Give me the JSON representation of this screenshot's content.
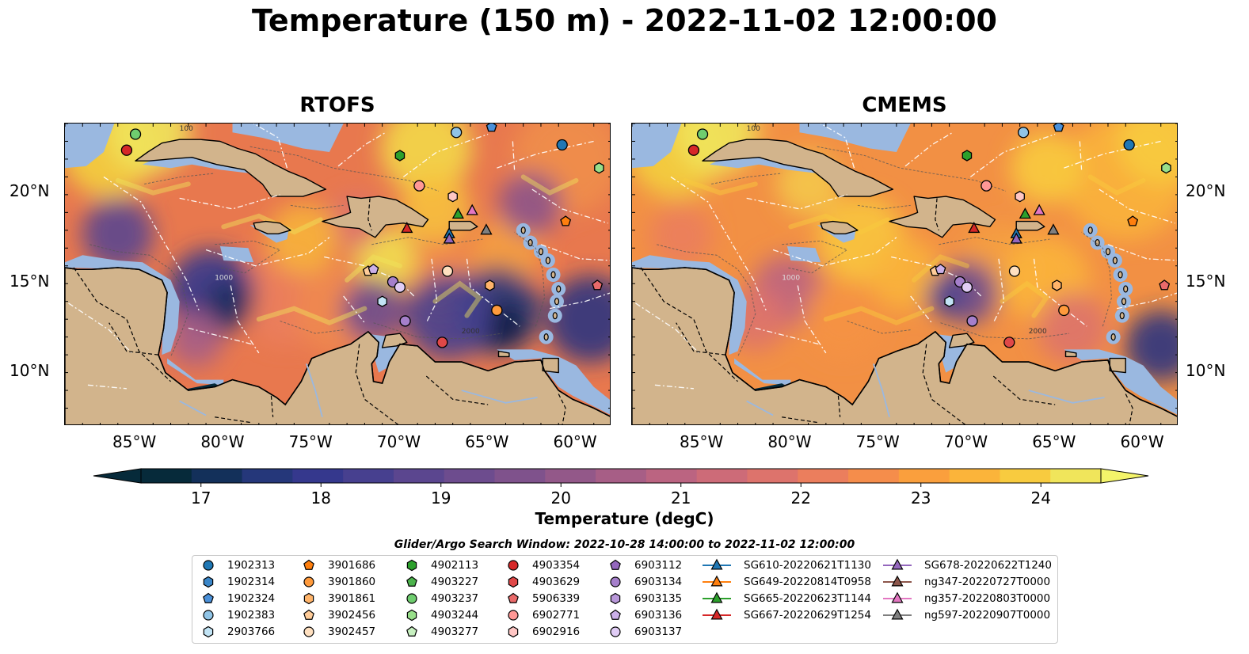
{
  "title": "Temperature (150 m) - 2022-11-02 12:00:00",
  "panels": [
    {
      "title": "RTOFS"
    },
    {
      "title": "CMEMS"
    }
  ],
  "map": {
    "lon_range": [
      -89,
      -58
    ],
    "lat_range": [
      7,
      24
    ],
    "lat_ticks": [
      "20°N",
      "15°N",
      "10°N"
    ],
    "lon_ticks": [
      "85°W",
      "80°W",
      "75°W",
      "70°W",
      "65°W",
      "60°W"
    ],
    "land_color": "#d2b48c",
    "shelf_color": "#9ab8e0",
    "contour_labels": [
      "1000",
      "2000",
      "100"
    ]
  },
  "colorbar": {
    "label": "Temperature (degC)",
    "ticks": [
      "17",
      "18",
      "19",
      "20",
      "21",
      "22",
      "23",
      "24"
    ],
    "range": [
      16.5,
      24.5
    ],
    "colors": [
      "#062a3a",
      "#13305a",
      "#25377a",
      "#35388d",
      "#47408f",
      "#5b468f",
      "#6d4c8e",
      "#7f528c",
      "#935889",
      "#a75e86",
      "#bb6481",
      "#cd6b78",
      "#dd736c",
      "#eb7e5d",
      "#f58d4b",
      "#fa9f3d",
      "#fbb43a",
      "#f8cb3f",
      "#f0e55b"
    ],
    "extend_low": "#062a3a",
    "extend_high": "#f4f46a"
  },
  "search_window": "Glider/Argo Search Window: 2022-10-28 14:00:00 to 2022-11-02 12:00:00",
  "legend": {
    "columns": [
      [
        {
          "label": "1902313",
          "marker": "circle",
          "color": "#1f77b4"
        },
        {
          "label": "1902314",
          "marker": "hexagon",
          "color": "#3a86c8"
        },
        {
          "label": "1902324",
          "marker": "pentagon",
          "color": "#4a90d9"
        },
        {
          "label": "1902383",
          "marker": "circle",
          "color": "#90c4e6"
        },
        {
          "label": "2903766",
          "marker": "hexagon",
          "color": "#c2e4f5"
        }
      ],
      [
        {
          "label": "3901686",
          "marker": "pentagon",
          "color": "#ff7f0e"
        },
        {
          "label": "3901860",
          "marker": "circle",
          "color": "#ff9a3c"
        },
        {
          "label": "3901861",
          "marker": "hexagon",
          "color": "#ffb46a"
        },
        {
          "label": "3902456",
          "marker": "pentagon",
          "color": "#ffcc99"
        },
        {
          "label": "3902457",
          "marker": "circle",
          "color": "#ffe0c0"
        }
      ],
      [
        {
          "label": "4902113",
          "marker": "hexagon",
          "color": "#2ca02c"
        },
        {
          "label": "4903227",
          "marker": "pentagon",
          "color": "#4cb34c"
        },
        {
          "label": "4903237",
          "marker": "circle",
          "color": "#6fcd6f"
        },
        {
          "label": "4903244",
          "marker": "hexagon",
          "color": "#98df8a"
        },
        {
          "label": "4903277",
          "marker": "pentagon",
          "color": "#c7f0c0"
        }
      ],
      [
        {
          "label": "4903354",
          "marker": "circle",
          "color": "#d62728"
        },
        {
          "label": "4903629",
          "marker": "hexagon",
          "color": "#e04848"
        },
        {
          "label": "5906339",
          "marker": "pentagon",
          "color": "#ea6a6a"
        },
        {
          "label": "6902771",
          "marker": "circle",
          "color": "#ff9896"
        },
        {
          "label": "6902916",
          "marker": "hexagon",
          "color": "#ffc6c4"
        }
      ],
      [
        {
          "label": "6903112",
          "marker": "pentagon",
          "color": "#9467bd"
        },
        {
          "label": "6903134",
          "marker": "circle",
          "color": "#a57fcb"
        },
        {
          "label": "6903135",
          "marker": "hexagon",
          "color": "#b897d9"
        },
        {
          "label": "6903136",
          "marker": "pentagon",
          "color": "#cbb0e8"
        },
        {
          "label": "6903137",
          "marker": "circle",
          "color": "#e0ccf5"
        }
      ],
      [
        {
          "label": "SG610-20220621T1130",
          "marker": "triangle-line",
          "color": "#1f77b4"
        },
        {
          "label": "SG649-20220814T0958",
          "marker": "triangle-line",
          "color": "#ff7f0e"
        },
        {
          "label": "SG665-20220623T1144",
          "marker": "triangle-line",
          "color": "#2ca02c"
        },
        {
          "label": "SG667-20220629T1254",
          "marker": "triangle-line",
          "color": "#d62728"
        }
      ],
      [
        {
          "label": "SG678-20220622T1240",
          "marker": "triangle-line",
          "color": "#9467bd"
        },
        {
          "label": "ng347-20220727T0000",
          "marker": "triangle-line",
          "color": "#8c564b"
        },
        {
          "label": "ng357-20220803T0000",
          "marker": "triangle-line",
          "color": "#e377c2"
        },
        {
          "label": "ng597-20220907T0000",
          "marker": "triangle-line",
          "color": "#7f7f7f"
        }
      ]
    ]
  },
  "markers": [
    {
      "lon": -85.0,
      "lat": 23.4,
      "marker": "circle",
      "color": "#6fcd6f"
    },
    {
      "lon": -85.5,
      "lat": 22.5,
      "marker": "circle",
      "color": "#d62728"
    },
    {
      "lon": -66.8,
      "lat": 23.5,
      "marker": "circle",
      "color": "#90c4e6"
    },
    {
      "lon": -64.8,
      "lat": 23.8,
      "marker": "pentagon",
      "color": "#4a90d9"
    },
    {
      "lon": -60.8,
      "lat": 22.8,
      "marker": "circle",
      "color": "#1f77b4"
    },
    {
      "lon": -58.7,
      "lat": 21.5,
      "marker": "hexagon",
      "color": "#98df8a"
    },
    {
      "lon": -70.0,
      "lat": 22.2,
      "marker": "hexagon",
      "color": "#2ca02c"
    },
    {
      "lon": -68.9,
      "lat": 20.5,
      "marker": "circle",
      "color": "#ff9896"
    },
    {
      "lon": -67.0,
      "lat": 19.9,
      "marker": "hexagon",
      "color": "#ffc6c4"
    },
    {
      "lon": -60.6,
      "lat": 18.5,
      "marker": "pentagon",
      "color": "#ff7f0e"
    },
    {
      "lon": -58.8,
      "lat": 14.9,
      "marker": "pentagon",
      "color": "#ea6a6a"
    },
    {
      "lon": -71.8,
      "lat": 15.7,
      "marker": "pentagon",
      "color": "#ffcc99"
    },
    {
      "lon": -71.5,
      "lat": 15.8,
      "marker": "pentagon",
      "color": "#cbb0e8"
    },
    {
      "lon": -70.4,
      "lat": 15.1,
      "marker": "circle",
      "color": "#a57fcb"
    },
    {
      "lon": -70.0,
      "lat": 14.8,
      "marker": "circle",
      "color": "#e0ccf5"
    },
    {
      "lon": -71.0,
      "lat": 14.0,
      "marker": "hexagon",
      "color": "#c2e4f5"
    },
    {
      "lon": -69.7,
      "lat": 12.9,
      "marker": "circle",
      "color": "#a57fcb"
    },
    {
      "lon": -67.3,
      "lat": 15.7,
      "marker": "circle",
      "color": "#ffe0c0"
    },
    {
      "lon": -64.9,
      "lat": 14.9,
      "marker": "hexagon",
      "color": "#ffb46a"
    },
    {
      "lon": -64.5,
      "lat": 13.5,
      "marker": "circle",
      "color": "#ff9a3c"
    },
    {
      "lon": -67.6,
      "lat": 11.7,
      "marker": "circle",
      "color": "#e04848"
    },
    {
      "lon": -69.6,
      "lat": 18.1,
      "marker": "triangle",
      "color": "#d62728"
    },
    {
      "lon": -66.7,
      "lat": 18.9,
      "marker": "triangle",
      "color": "#2ca02c"
    },
    {
      "lon": -67.2,
      "lat": 17.8,
      "marker": "triangle",
      "color": "#1f77b4"
    },
    {
      "lon": -67.2,
      "lat": 17.5,
      "marker": "triangle",
      "color": "#9467bd"
    },
    {
      "lon": -65.1,
      "lat": 18.0,
      "marker": "triangle",
      "color": "#7f7f7f"
    },
    {
      "lon": -65.9,
      "lat": 19.1,
      "marker": "triangle",
      "color": "#e377c2"
    }
  ]
}
